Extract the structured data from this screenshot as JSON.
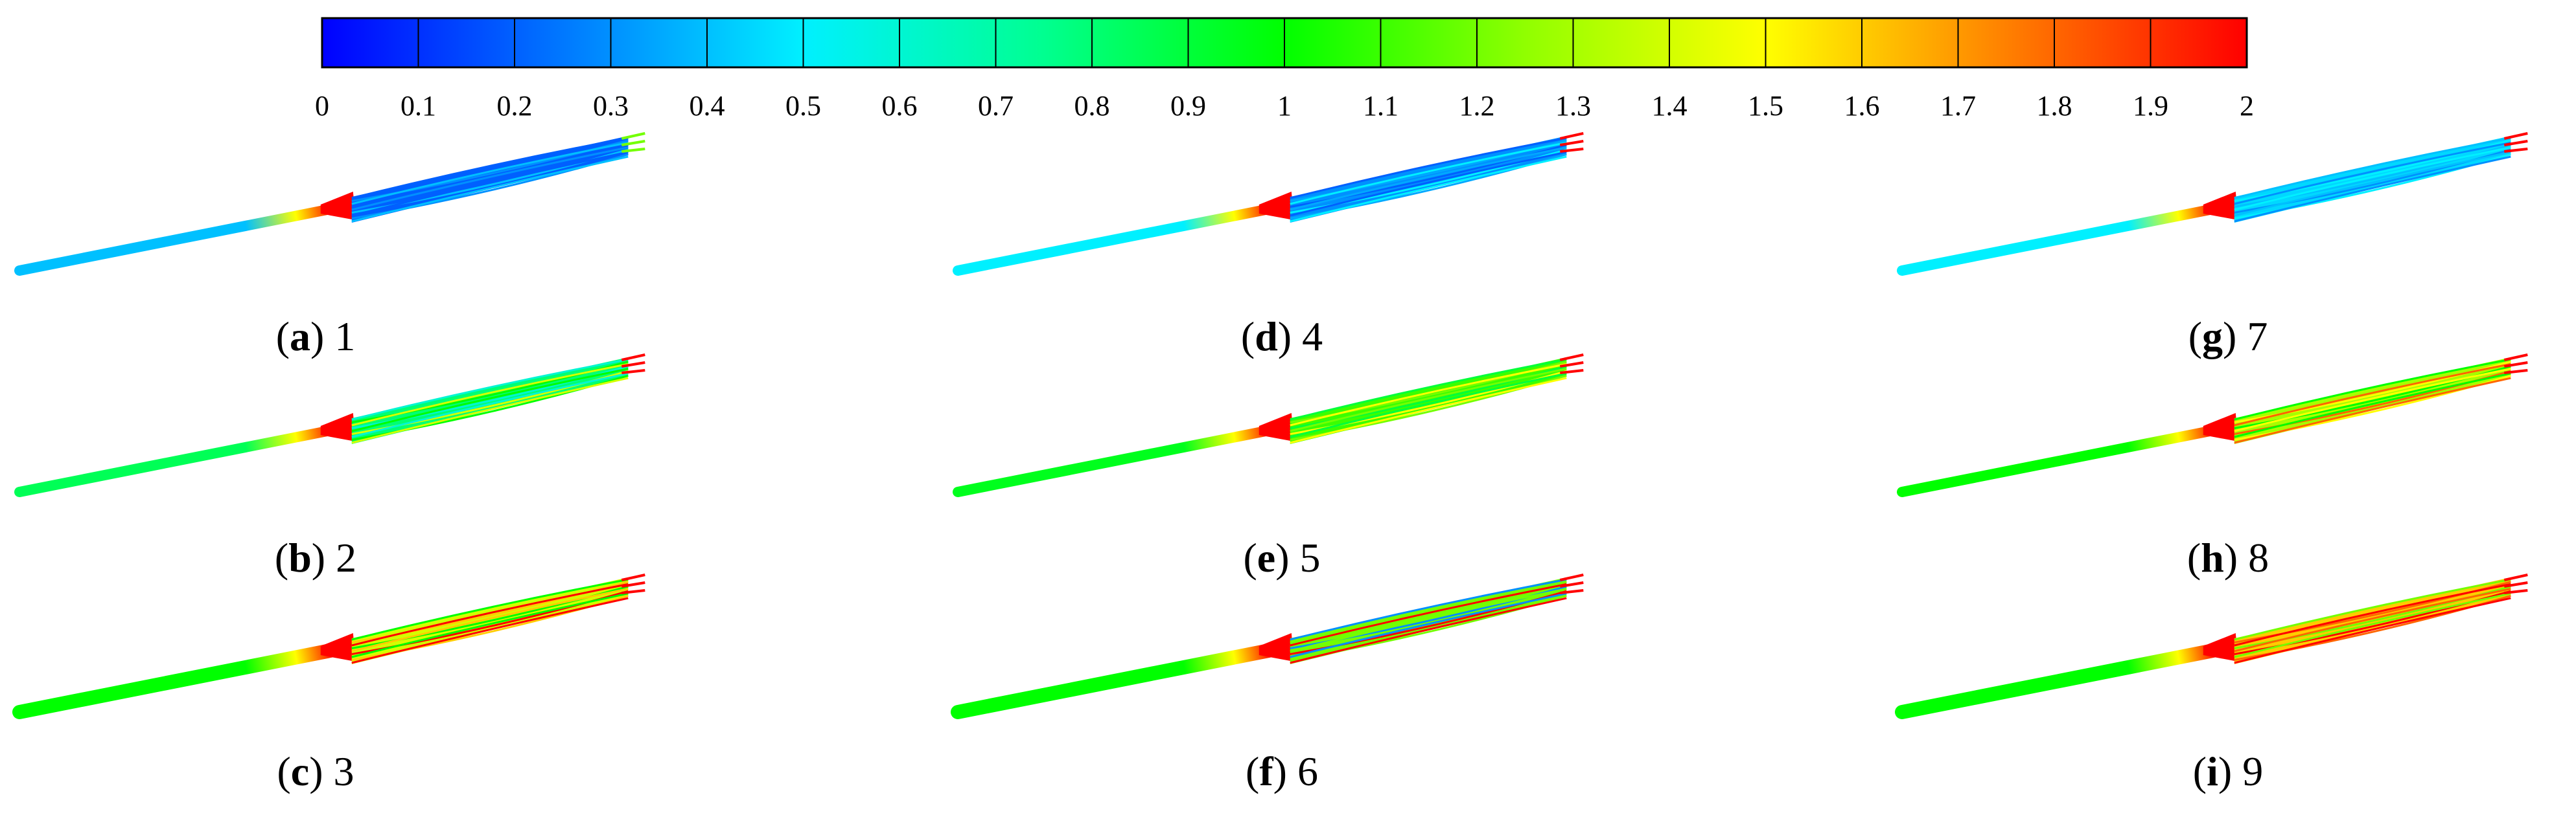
{
  "colorbar": {
    "min": 0,
    "max": 2,
    "tick_labels": [
      "0",
      "0.1",
      "0.2",
      "0.3",
      "0.4",
      "0.5",
      "0.6",
      "0.7",
      "0.8",
      "0.9",
      "1",
      "1.1",
      "1.2",
      "1.3",
      "1.4",
      "1.5",
      "1.6",
      "1.7",
      "1.8",
      "1.9",
      "2"
    ],
    "colors": [
      "#0000ff",
      "#00a0ff",
      "#00ffff",
      "#00ff80",
      "#00ff00",
      "#80ff00",
      "#ffff00",
      "#ff8000",
      "#ff0000"
    ]
  },
  "panels": [
    {
      "letter": "a",
      "number": "1",
      "inlet": 0.4,
      "core": 0.2,
      "core_mix": [
        0.2,
        0.3,
        0.4
      ],
      "tip": 1.2
    },
    {
      "letter": "b",
      "number": "2",
      "inlet": 0.85,
      "core": 0.8,
      "core_mix": [
        0.6,
        1.0,
        1.4
      ],
      "tip": 2.0
    },
    {
      "letter": "c",
      "number": "3",
      "inlet": 1.0,
      "core": 1.4,
      "core_mix": [
        1.0,
        1.6,
        2.0
      ],
      "tip": 2.0
    },
    {
      "letter": "d",
      "number": "4",
      "inlet": 0.5,
      "core": 0.3,
      "core_mix": [
        0.2,
        0.35,
        0.5
      ],
      "tip": 2.0
    },
    {
      "letter": "e",
      "number": "5",
      "inlet": 0.95,
      "core": 1.1,
      "core_mix": [
        0.9,
        1.2,
        1.5
      ],
      "tip": 2.0
    },
    {
      "letter": "f",
      "number": "6",
      "inlet": 1.0,
      "core": 1.2,
      "core_mix": [
        0.3,
        1.2,
        2.0
      ],
      "tip": 2.0
    },
    {
      "letter": "g",
      "number": "7",
      "inlet": 0.5,
      "core": 0.45,
      "core_mix": [
        0.4,
        0.5,
        0.3
      ],
      "tip": 2.0
    },
    {
      "letter": "h",
      "number": "8",
      "inlet": 1.0,
      "core": 1.3,
      "core_mix": [
        1.0,
        1.5,
        1.8
      ],
      "tip": 2.0
    },
    {
      "letter": "i",
      "number": "9",
      "inlet": 1.0,
      "core": 1.6,
      "core_mix": [
        1.2,
        1.8,
        2.0
      ],
      "tip": 2.0
    }
  ]
}
